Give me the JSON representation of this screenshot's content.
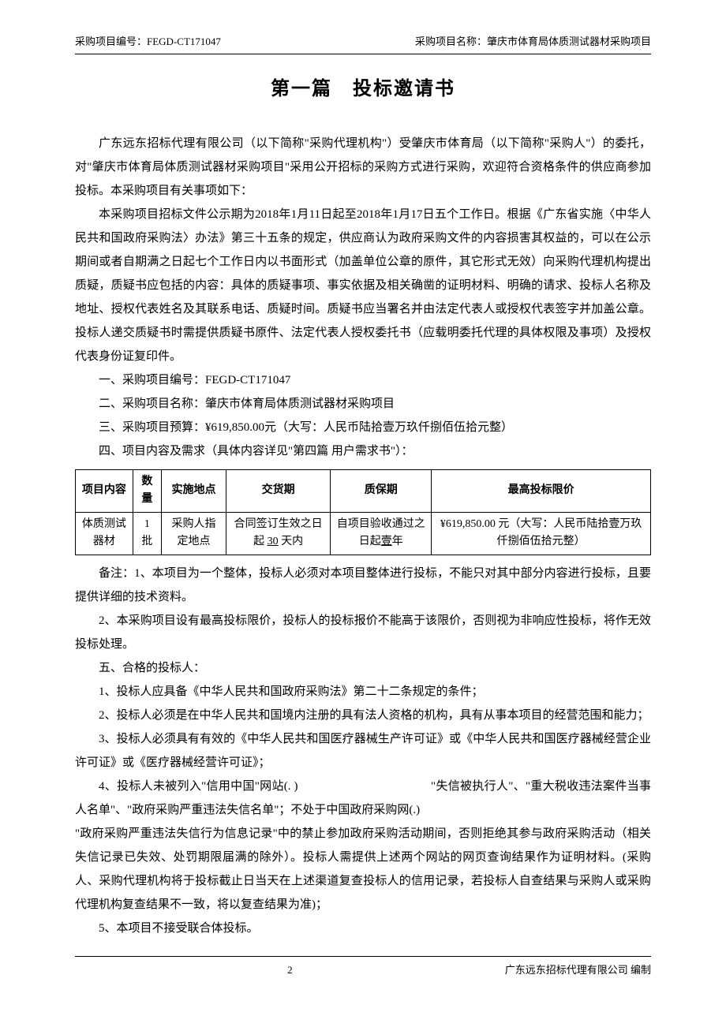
{
  "header": {
    "left": "采购项目编号：FEGD-CT171047",
    "right": "采购项目名称：肇庆市体育局体质测试器材采购项目"
  },
  "title": "第一篇　投标邀请书",
  "intro": {
    "p1": "广东远东招标代理有限公司（以下简称\"采购代理机构\"）受肇庆市体育局（以下简称\"采购人\"）的委托，对\"肇庆市体育局体质测试器材采购项目\"采用公开招标的采购方式进行采购，欢迎符合资格条件的供应商参加投标。本采购项目有关事项如下：",
    "p2": "本采购项目招标文件公示期为2018年1月11日起至2018年1月17日五个工作日。根据《广东省实施〈中华人民共和国政府采购法〉办法》第三十五条的规定，供应商认为政府采购文件的内容损害其权益的，可以在公示期间或者自期满之日起七个工作日内以书面形式（加盖单位公章的原件，其它形式无效）向采购代理机构提出质疑，质疑书应包括的内容：具体的质疑事项、事实依据及相关确凿的证明材料、明确的请求、投标人名称及地址、授权代表姓名及其联系电话、质疑时间。质疑书应当署名并由法定代表人或授权代表签字并加盖公章。投标人递交质疑书时需提供质疑书原件、法定代表人授权委托书（应载明委托代理的具体权限及事项）及授权代表身份证复印件。"
  },
  "items": {
    "i1": "一、采购项目编号：FEGD-CT171047",
    "i2": "二、采购项目名称：肇庆市体育局体质测试器材采购项目",
    "i3": "三、采购项目预算：¥619,850.00元（大写：人民币陆拾壹万玖仟捌佰伍拾元整）",
    "i4": "四、项目内容及需求（具体内容详见\"第四篇 用户需求书\"）："
  },
  "table": {
    "headers": {
      "c1": "项目内容",
      "c2": "数量",
      "c3": "实施地点",
      "c4": "交货期",
      "c5": "质保期",
      "c6": "最高投标限价"
    },
    "row": {
      "c1": "体质测试器材",
      "c2": "1 批",
      "c3": "采购人指定地点",
      "c4a": "合同签订生效之日起 ",
      "c4b": "30",
      "c4c": " 天内",
      "c5a": "自项目验收通过之日起",
      "c5b": "壹",
      "c5c": "年",
      "c6": "¥619,850.00 元（大写：人民币陆拾壹万玖仟捌佰伍拾元整）"
    }
  },
  "notes": {
    "n1": "备注：1、本项目为一个整体，投标人必须对本项目整体进行投标，不能只对其中部分内容进行投标，且要提供详细的技术资料。",
    "n2": "2、本采购项目设有最高投标限价，投标人的投标报价不能高于该限价，否则视为非响应性投标，将作无效投标处理。"
  },
  "section5": {
    "title": "五、合格的投标人：",
    "q1": "1、投标人应具备《中华人民共和国政府采购法》第二十二条规定的条件；",
    "q2": "2、投标人必须是在中华人民共和国境内注册的具有法人资格的机构，具有从事本项目的经营范围和能力；",
    "q3": "3、投标人必须具有有效的《中华人民共和国医疗器械生产许可证》或《中华人民共和国医疗器械经营企业许可证》或《医疗器械经营许可证》；",
    "q4": "4、投标人未被列入\"信用中国\"网站(. )　　　　　　　　　　　\"失信被执行人\"、\"重大税收违法案件当事人名单\"、\"政府采购严重违法失信名单\"；不处于中国政府采购网(.)",
    "q4b": "\"政府采购严重违法失信行为信息记录\"中的禁止参加政府采购活动期间，否则拒绝其参与政府采购活动（相关失信记录已失效、处罚期限届满的除外）。投标人需提供上述两个网站的网页查询结果作为证明材料。(采购人、采购代理机构将于投标截止日当天在上述渠道复查投标人的信用记录，若投标人自查结果与采购人或采购代理机构复查结果不一致，将以复查结果为准)；",
    "q5": "5、本项目不接受联合体投标。"
  },
  "footer": {
    "page": "2",
    "right": "广东远东招标代理有限公司  编制"
  }
}
